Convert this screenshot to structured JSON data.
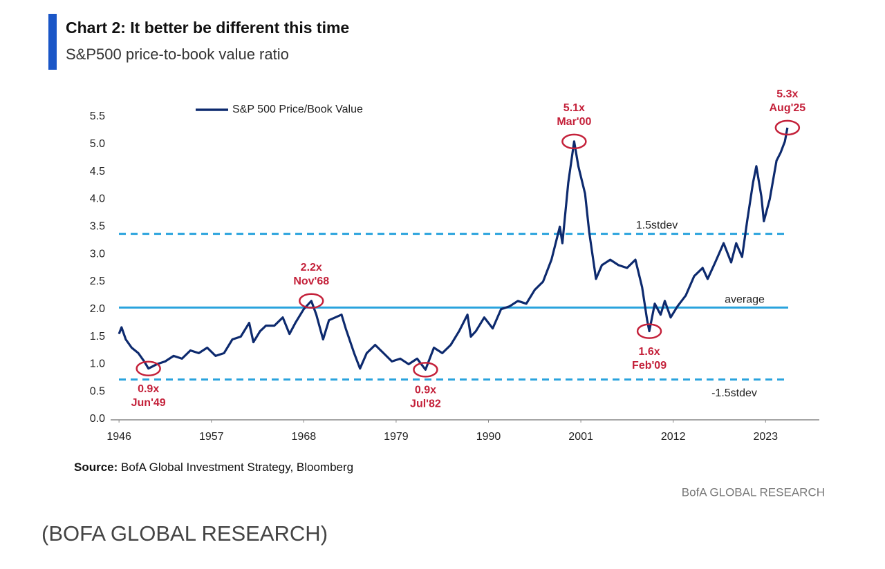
{
  "chart_data": {
    "type": "line",
    "title": "Chart 2: It better be different this time",
    "subtitle": "S&P500 price-to-book value ratio",
    "source_label": "Source:",
    "source_text": "BofA Global Investment Strategy, Bloomberg",
    "brand": "BofA GLOBAL RESEARCH",
    "caption": "(BOFA GLOBAL RESEARCH)",
    "xlim": [
      1945,
      2029.4
    ],
    "xticks": [
      1946,
      1957,
      1968,
      1979,
      1990,
      2001,
      2012,
      2023
    ],
    "ylim": [
      0,
      5.5
    ],
    "yticks": [
      {
        "value": 0,
        "label": "0.0"
      },
      0.5,
      {
        "value": 1,
        "label": "1.0"
      },
      1.5,
      {
        "value": 2,
        "label": "2.0"
      },
      2.5,
      {
        "value": 3,
        "label": "3.0"
      },
      3.5,
      {
        "value": 4,
        "label": "4.0"
      },
      4.5,
      {
        "value": 5,
        "label": "5.0"
      },
      5.5
    ],
    "legend": "top-left",
    "x": [
      1946.0,
      1946.3,
      1946.8,
      1947.5,
      1948.3,
      1949.0,
      1949.5,
      1950.5,
      1951.5,
      1952.5,
      1953.5,
      1954.5,
      1955.5,
      1956.5,
      1957.5,
      1958.5,
      1959.5,
      1960.5,
      1961.5,
      1962.0,
      1962.8,
      1963.5,
      1964.5,
      1965.5,
      1966.3,
      1967.0,
      1968.0,
      1968.9,
      1969.5,
      1970.3,
      1971.0,
      1972.5,
      1973.0,
      1974.0,
      1974.7,
      1975.5,
      1976.5,
      1977.5,
      1978.5,
      1979.5,
      1980.5,
      1981.5,
      1982.5,
      1983.5,
      1984.5,
      1985.5,
      1986.5,
      1987.5,
      1987.9,
      1988.5,
      1989.5,
      1990.5,
      1991.5,
      1992.5,
      1993.5,
      1994.5,
      1995.5,
      1996.5,
      1997.5,
      1998.5,
      1998.8,
      1999.5,
      2000.2,
      2000.7,
      2001.5,
      2002.0,
      2002.8,
      2003.5,
      2004.5,
      2005.5,
      2006.5,
      2007.5,
      2008.3,
      2008.9,
      2009.15,
      2009.8,
      2010.5,
      2011.0,
      2011.7,
      2012.5,
      2013.5,
      2014.5,
      2015.5,
      2016.1,
      2017.0,
      2018.0,
      2018.9,
      2019.5,
      2020.2,
      2020.8,
      2021.5,
      2021.9,
      2022.5,
      2022.8,
      2023.5,
      2024.3,
      2024.8,
      2025.3,
      2025.6
    ],
    "series": [
      {
        "name": "S&P 500 Price/Book Value",
        "color": "#0d2a6e",
        "values": [
          1.55,
          1.67,
          1.45,
          1.3,
          1.2,
          1.05,
          0.92,
          1.0,
          1.05,
          1.15,
          1.1,
          1.25,
          1.2,
          1.3,
          1.15,
          1.2,
          1.45,
          1.5,
          1.75,
          1.4,
          1.6,
          1.7,
          1.7,
          1.85,
          1.55,
          1.75,
          2.0,
          2.15,
          1.9,
          1.45,
          1.8,
          1.9,
          1.65,
          1.2,
          0.92,
          1.2,
          1.35,
          1.2,
          1.05,
          1.1,
          1.0,
          1.1,
          0.9,
          1.3,
          1.2,
          1.35,
          1.6,
          1.9,
          1.5,
          1.6,
          1.85,
          1.65,
          2.0,
          2.05,
          2.15,
          2.1,
          2.35,
          2.5,
          2.9,
          3.5,
          3.2,
          4.3,
          5.05,
          4.6,
          4.1,
          3.4,
          2.55,
          2.8,
          2.9,
          2.8,
          2.75,
          2.9,
          2.4,
          1.8,
          1.6,
          2.1,
          1.9,
          2.15,
          1.85,
          2.05,
          2.25,
          2.6,
          2.75,
          2.55,
          2.85,
          3.2,
          2.85,
          3.2,
          2.95,
          3.6,
          4.3,
          4.6,
          4.05,
          3.6,
          4.0,
          4.7,
          4.85,
          5.05,
          5.3
        ]
      }
    ],
    "ref_lines": [
      {
        "label": "1.5stdev",
        "value": 3.37,
        "style": "dashed",
        "color": "#29a3dd"
      },
      {
        "label": "average",
        "value": 2.03,
        "style": "solid",
        "color": "#29a3dd"
      },
      {
        "label": "-1.5stdev",
        "value": 0.72,
        "style": "dashed",
        "color": "#29a3dd"
      }
    ],
    "annotations": [
      {
        "text": "0.9x",
        "date": "Jun'49",
        "x": 1949.5,
        "y": 0.92
      },
      {
        "text": "2.2x",
        "date": "Nov'68",
        "x": 1968.9,
        "y": 2.15
      },
      {
        "text": "0.9x",
        "date": "Jul'82",
        "x": 1982.5,
        "y": 0.9
      },
      {
        "text": "5.1x",
        "date": "Mar'00",
        "x": 2000.2,
        "y": 5.05
      },
      {
        "text": "1.6x",
        "date": "Feb'09",
        "x": 2009.15,
        "y": 1.6
      },
      {
        "text": "5.3x",
        "date": "Aug'25",
        "x": 2025.6,
        "y": 5.3
      }
    ],
    "annotation_color": "#c4213a"
  }
}
